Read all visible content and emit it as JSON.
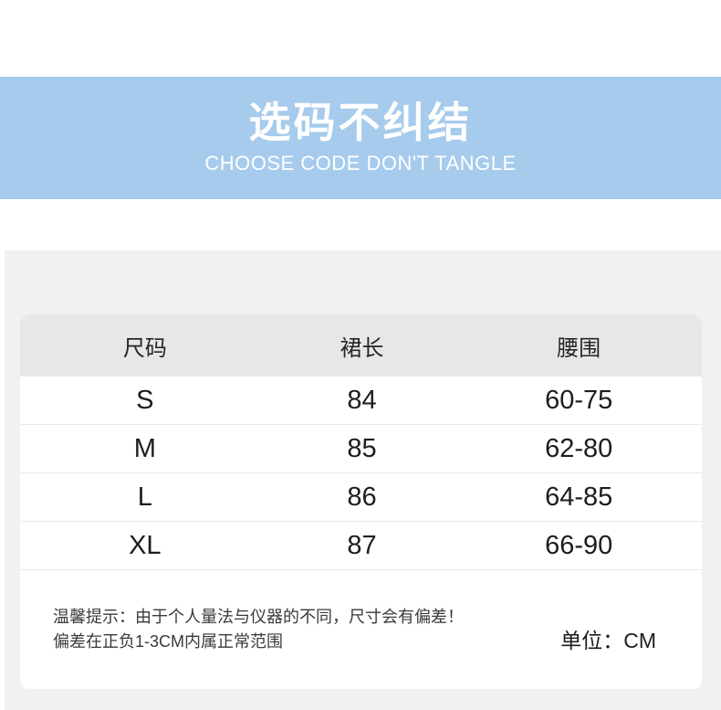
{
  "banner": {
    "title": "选码不纠结",
    "subtitle": "CHOOSE CODE DON'T TANGLE"
  },
  "table": {
    "columns": [
      "尺码",
      "裙长",
      "腰围"
    ],
    "rows": [
      [
        "S",
        "84",
        "60-75"
      ],
      [
        "M",
        "85",
        "62-80"
      ],
      [
        "L",
        "86",
        "64-85"
      ],
      [
        "XL",
        "87",
        "66-90"
      ]
    ]
  },
  "footnote": {
    "line1": "温馨提示：由于个人量法与仪器的不同，尺寸会有偏差！",
    "line2": "偏差在正负1-3CM内属正常范围",
    "unit": "单位：CM"
  },
  "colors": {
    "banner_bg": "#a6cbec",
    "section_bg": "#f1f1f2",
    "header_row_bg": "#e7e7e8",
    "row_separator": "#e9e9e9",
    "text": "#1d1d1d"
  }
}
